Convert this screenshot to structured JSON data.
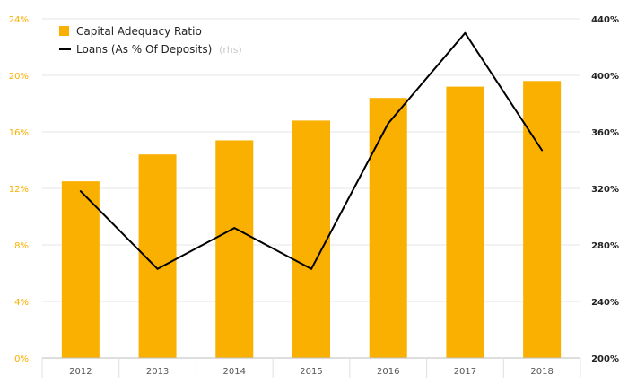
{
  "chart_data": {
    "type": "bar",
    "categories": [
      "2012",
      "2013",
      "2014",
      "2015",
      "2016",
      "2017",
      "2018"
    ],
    "series": [
      {
        "name": "Capital Adequacy Ratio",
        "type": "bar",
        "axis": "left",
        "color": "#F9B000",
        "values": [
          12.5,
          14.4,
          15.4,
          16.8,
          18.4,
          19.2,
          19.6
        ]
      },
      {
        "name": "Loans (As % Of Deposits)",
        "name_note": "(rhs)",
        "type": "line",
        "axis": "right",
        "color": "#000000",
        "values": [
          318,
          263,
          292,
          263,
          366,
          430,
          347
        ]
      }
    ],
    "y_left": {
      "ylim": [
        0,
        24
      ],
      "ticks": [
        0,
        4,
        8,
        12,
        16,
        20,
        24
      ],
      "tick_labels": [
        "0%",
        "4%",
        "8%",
        "12%",
        "16%",
        "20%",
        "24%"
      ],
      "label_color": "#F9B000"
    },
    "y_right": {
      "ylim": [
        200,
        440
      ],
      "ticks": [
        200,
        240,
        280,
        320,
        360,
        400,
        440
      ],
      "tick_labels": [
        "200%",
        "240%",
        "280%",
        "320%",
        "360%",
        "400%",
        "440%"
      ],
      "label_color": "#222222"
    },
    "grid": true,
    "legend_position": "top-left"
  }
}
